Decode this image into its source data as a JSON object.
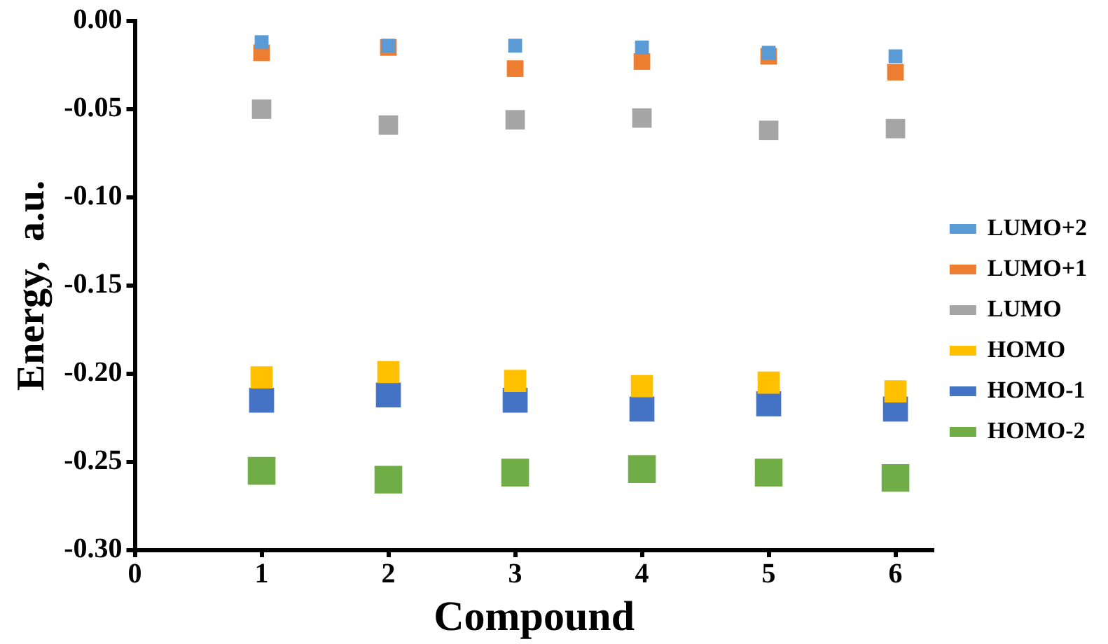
{
  "chart_data": {
    "type": "scatter",
    "xlabel": "Compound",
    "ylabel": "Energy,  a.u.",
    "x": [
      1,
      2,
      3,
      4,
      5,
      6
    ],
    "xlim": [
      0,
      6.3
    ],
    "xticks": [
      0,
      1,
      2,
      3,
      4,
      5,
      6
    ],
    "ylim": [
      -0.3,
      0
    ],
    "yticks": [
      {
        "value": 0,
        "label": "0.00"
      },
      {
        "value": -0.05,
        "label": "-0.05"
      },
      {
        "value": -0.1,
        "label": "-0.10"
      },
      {
        "value": -0.15,
        "label": "-0.15"
      },
      {
        "value": -0.2,
        "label": "-0.20"
      },
      {
        "value": -0.25,
        "label": "-0.25"
      },
      {
        "value": -0.3,
        "label": "-0.30"
      }
    ],
    "grid": false,
    "legend": "right",
    "marker": "square",
    "series": [
      {
        "name": "LUMO+2",
        "color": "#5b9bd5",
        "values": [
          -0.012,
          -0.014,
          -0.014,
          -0.015,
          -0.018,
          -0.02
        ]
      },
      {
        "name": "LUMO+1",
        "color": "#ed7d31",
        "values": [
          -0.018,
          -0.015,
          -0.027,
          -0.023,
          -0.02,
          -0.029
        ]
      },
      {
        "name": "LUMO",
        "color": "#a5a5a5",
        "values": [
          -0.05,
          -0.059,
          -0.056,
          -0.055,
          -0.062,
          -0.061
        ]
      },
      {
        "name": "HOMO",
        "color": "#ffc000",
        "values": [
          -0.202,
          -0.199,
          -0.204,
          -0.207,
          -0.205,
          -0.21
        ]
      },
      {
        "name": "HOMO-1",
        "color": "#4472c4",
        "values": [
          -0.215,
          -0.212,
          -0.215,
          -0.22,
          -0.217,
          -0.22
        ]
      },
      {
        "name": "HOMO-2",
        "color": "#70ad47",
        "values": [
          -0.255,
          -0.26,
          -0.256,
          -0.254,
          -0.256,
          -0.259
        ]
      }
    ]
  }
}
